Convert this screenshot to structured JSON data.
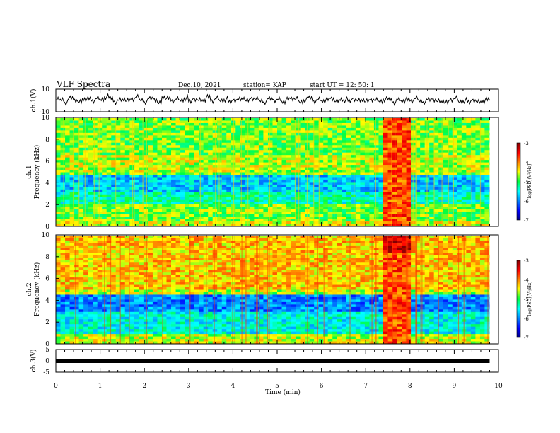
{
  "header": {
    "title": "VLF Spectra",
    "date": "Dec.10, 2021",
    "station": "station= KAP",
    "start_ut": "start  UT =   12: 50: 1"
  },
  "chart_data": [
    {
      "type": "line",
      "id": "ch1_waveform",
      "ylabel": "ch.1(V)",
      "ylim": [
        -10,
        10
      ],
      "yticks": [
        "10",
        "-10"
      ],
      "xlim": [
        0,
        10
      ],
      "series": [
        {
          "x": [
            0,
            0.1,
            0.2,
            0.3,
            0.4,
            0.5,
            0.6,
            0.7,
            0.8,
            0.9,
            1.0,
            1.1,
            1.2,
            1.3,
            1.4,
            1.5,
            1.6,
            1.7,
            1.8,
            1.9,
            2.0,
            2.1,
            2.2,
            2.3,
            2.4,
            2.5,
            2.6,
            2.7,
            2.8,
            2.9,
            3.0,
            3.1,
            3.2,
            3.3,
            3.4,
            3.5,
            3.6,
            3.7,
            3.8,
            3.9,
            4.0,
            4.1,
            4.2,
            4.3,
            4.4,
            4.5,
            4.6,
            4.7,
            4.8,
            4.9,
            5.0,
            5.1,
            5.2,
            5.3,
            5.4,
            5.5,
            5.6,
            5.7,
            5.8,
            5.9,
            6.0,
            6.1,
            6.2,
            6.3,
            6.4,
            6.5,
            6.6,
            6.7,
            6.8,
            6.9,
            7.0,
            7.1,
            7.2,
            7.3,
            7.4,
            7.5,
            7.6,
            7.7,
            7.8,
            7.9,
            8.0,
            8.1,
            8.2,
            8.3,
            8.4,
            8.5,
            8.6,
            8.7,
            8.8,
            8.9,
            9.0,
            9.1,
            9.2,
            9.3,
            9.4,
            9.5,
            9.6,
            9.7,
            9.8
          ],
          "y": [
            1,
            2,
            -3,
            4,
            1,
            -2,
            3,
            2,
            -1,
            3,
            2,
            6,
            4,
            -2,
            1,
            3,
            -1,
            2,
            5,
            1,
            -2,
            3,
            2,
            -4,
            6,
            3,
            -1,
            2,
            1,
            4,
            -2,
            3,
            1,
            2,
            5,
            -1,
            3,
            0,
            2,
            -3,
            1,
            2,
            4,
            -1,
            3,
            2,
            0,
            -2,
            3,
            1,
            2,
            -1,
            1,
            3,
            2,
            -2,
            1,
            4,
            -1,
            2,
            0,
            1,
            3,
            -2,
            2,
            1,
            -1,
            3,
            0,
            2,
            -2,
            1,
            0,
            -1,
            2,
            1,
            -3,
            2,
            0,
            1,
            -1,
            3,
            0,
            -2,
            1,
            2,
            -1,
            0,
            -4,
            1,
            3,
            -2,
            0,
            -3,
            1,
            -2,
            -1,
            1,
            0
          ]
        }
      ]
    },
    {
      "type": "heatmap",
      "id": "ch1_spectrogram",
      "ylabel_top": "ch.1",
      "ylabel": "Frequency (kHz)",
      "ylim": [
        0,
        10
      ],
      "yticks": [
        "0",
        "2",
        "4",
        "6",
        "8",
        "10"
      ],
      "xlim": [
        0,
        10
      ],
      "colorbar": {
        "label": "log(PSD)(V²/Hz)",
        "range": [
          -7,
          -3
        ],
        "ticks": [
          "-3",
          "-4",
          "-5",
          "-6",
          "-7"
        ]
      }
    },
    {
      "type": "heatmap",
      "id": "ch2_spectrogram",
      "ylabel_top": "ch.2",
      "ylabel": "Frequency (kHz)",
      "ylim": [
        0,
        10
      ],
      "yticks": [
        "0",
        "2",
        "4",
        "6",
        "8",
        "10"
      ],
      "xlim": [
        0,
        10
      ],
      "colorbar": {
        "label": "log(PSD)(V²/Hz)",
        "range": [
          -7,
          -3
        ],
        "ticks": [
          "-3",
          "-4",
          "-5",
          "-6",
          "-7"
        ]
      }
    },
    {
      "type": "line",
      "id": "ch3_waveform",
      "ylabel": "ch.3(V)",
      "ylim": [
        -5,
        5
      ],
      "yticks": [
        "5",
        "0",
        "-5"
      ],
      "xlim": [
        0,
        10
      ],
      "series": [
        {
          "x": [
            0,
            9.8
          ],
          "y": [
            0,
            0
          ]
        }
      ]
    }
  ],
  "xaxis": {
    "label": "Time (min)",
    "ticks": [
      "0",
      "1",
      "2",
      "3",
      "4",
      "5",
      "6",
      "7",
      "8",
      "9",
      "10"
    ]
  }
}
